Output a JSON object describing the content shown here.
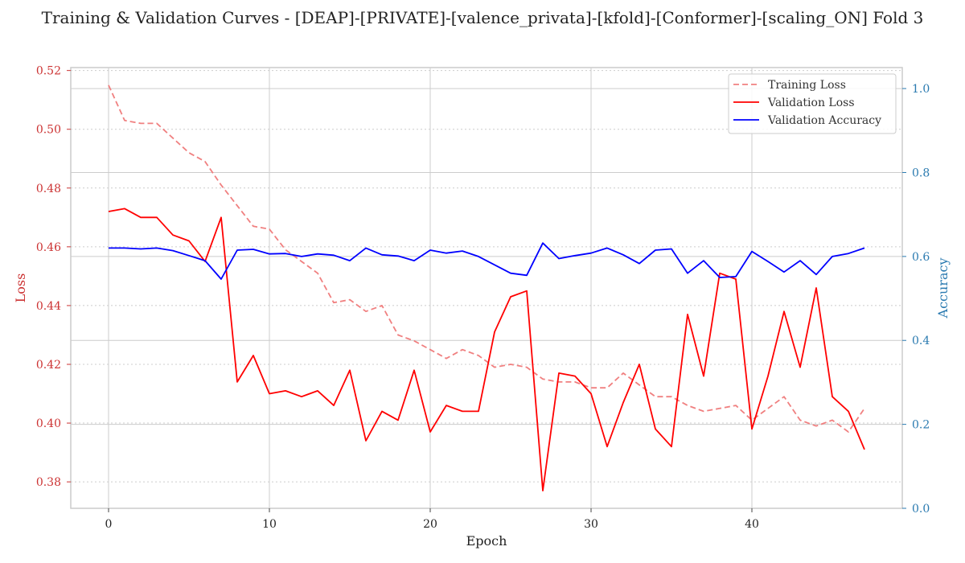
{
  "chart_data": {
    "type": "line",
    "title": "Training & Validation Curves - [DEAP]-[PRIVATE]-[valence_privata]-[kfold]-[Conformer]-[scaling_ON] Fold 3",
    "xlabel": "Epoch",
    "ylabel_left": "Loss",
    "ylabel_right": "Accuracy",
    "xlim": [
      -2.35,
      49.35
    ],
    "ylim_left": [
      0.371,
      0.521
    ],
    "ylim_right": [
      0.0,
      1.05
    ],
    "x_ticks": [
      0,
      10,
      20,
      30,
      40
    ],
    "y_left_ticks": [
      0.38,
      0.4,
      0.42,
      0.44,
      0.46,
      0.48,
      0.5,
      0.52
    ],
    "y_left_tick_labels": [
      "0.38",
      "0.40",
      "0.42",
      "0.44",
      "0.46",
      "0.48",
      "0.50",
      "0.52"
    ],
    "y_right_ticks": [
      0.0,
      0.2,
      0.4,
      0.6,
      0.8,
      1.0
    ],
    "y_right_tick_labels": [
      "0.0",
      "0.2",
      "0.4",
      "0.6",
      "0.8",
      "1.0"
    ],
    "x_tick_labels": [
      "0",
      "10",
      "20",
      "30",
      "40"
    ],
    "grid": true,
    "legend_position": "top-right",
    "colors": {
      "left_axis": "#cc3333",
      "right_axis": "#2a7ab0",
      "frame": "#cccccc",
      "grid": "#cccccc"
    },
    "series": [
      {
        "name": "Training Loss",
        "axis": "left",
        "color": "#f08080",
        "style": "dashed",
        "x": [
          0,
          1,
          2,
          3,
          4,
          5,
          6,
          7,
          8,
          9,
          10,
          11,
          12,
          13,
          14,
          15,
          16,
          17,
          18,
          19,
          20,
          21,
          22,
          23,
          24,
          25,
          26,
          27,
          28,
          29,
          30,
          31,
          32,
          33,
          34,
          35,
          36,
          37,
          38,
          39,
          40,
          41,
          42,
          43,
          44,
          45,
          46,
          47
        ],
        "values": [
          0.515,
          0.503,
          0.502,
          0.502,
          0.497,
          0.492,
          0.489,
          0.481,
          0.474,
          0.467,
          0.466,
          0.459,
          0.455,
          0.451,
          0.441,
          0.442,
          0.438,
          0.44,
          0.43,
          0.428,
          0.425,
          0.422,
          0.425,
          0.423,
          0.419,
          0.42,
          0.419,
          0.415,
          0.414,
          0.414,
          0.412,
          0.412,
          0.417,
          0.413,
          0.409,
          0.409,
          0.406,
          0.404,
          0.405,
          0.406,
          0.401,
          0.405,
          0.409,
          0.401,
          0.399,
          0.401,
          0.397,
          0.405
        ]
      },
      {
        "name": "Validation Loss",
        "axis": "left",
        "color": "#ff0000",
        "style": "solid",
        "x": [
          0,
          1,
          2,
          3,
          4,
          5,
          6,
          7,
          8,
          9,
          10,
          11,
          12,
          13,
          14,
          15,
          16,
          17,
          18,
          19,
          20,
          21,
          22,
          23,
          24,
          25,
          26,
          27,
          28,
          29,
          30,
          31,
          32,
          33,
          34,
          35,
          36,
          37,
          38,
          39,
          40,
          41,
          42,
          43,
          44,
          45,
          46,
          47
        ],
        "values": [
          0.472,
          0.473,
          0.47,
          0.47,
          0.464,
          0.462,
          0.455,
          0.47,
          0.414,
          0.423,
          0.41,
          0.411,
          0.409,
          0.411,
          0.406,
          0.418,
          0.394,
          0.404,
          0.401,
          0.418,
          0.397,
          0.406,
          0.404,
          0.404,
          0.431,
          0.443,
          0.445,
          0.377,
          0.417,
          0.416,
          0.41,
          0.392,
          0.407,
          0.42,
          0.398,
          0.392,
          0.437,
          0.416,
          0.451,
          0.449,
          0.398,
          0.416,
          0.438,
          0.419,
          0.446,
          0.409,
          0.404,
          0.391
        ]
      },
      {
        "name": "Validation Accuracy",
        "axis": "right",
        "color": "#0000ff",
        "style": "solid",
        "x": [
          0,
          1,
          2,
          3,
          4,
          5,
          6,
          7,
          8,
          9,
          10,
          11,
          12,
          13,
          14,
          15,
          16,
          17,
          18,
          19,
          20,
          21,
          22,
          23,
          24,
          25,
          26,
          27,
          28,
          29,
          30,
          31,
          32,
          33,
          34,
          35,
          36,
          37,
          38,
          39,
          40,
          41,
          42,
          43,
          44,
          45,
          46,
          47
        ],
        "values": [
          0.62,
          0.62,
          0.618,
          0.62,
          0.614,
          0.602,
          0.59,
          0.546,
          0.615,
          0.617,
          0.606,
          0.607,
          0.6,
          0.606,
          0.603,
          0.59,
          0.62,
          0.604,
          0.601,
          0.59,
          0.615,
          0.608,
          0.613,
          0.6,
          0.58,
          0.56,
          0.555,
          0.632,
          0.595,
          0.602,
          0.608,
          0.62,
          0.604,
          0.583,
          0.615,
          0.618,
          0.56,
          0.59,
          0.55,
          0.552,
          0.612,
          0.588,
          0.563,
          0.59,
          0.557,
          0.6,
          0.607,
          0.62
        ]
      }
    ]
  }
}
